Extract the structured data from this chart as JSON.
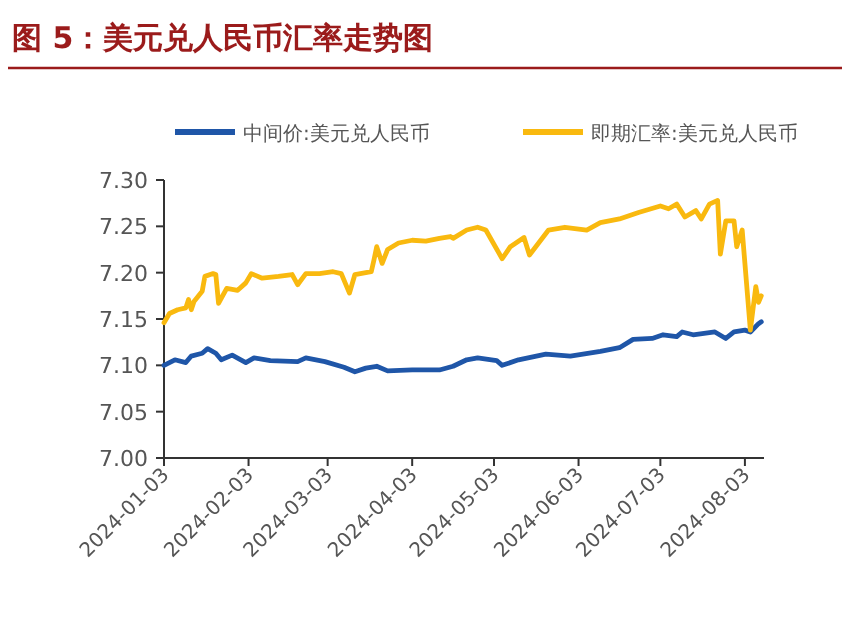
{
  "chart_data": {
    "type": "line",
    "title": "图 5：美元兑人民币汇率走势图",
    "legend": "top",
    "xlim": [
      "2024-01-03",
      "2024-08-10"
    ],
    "ylim": [
      7.0,
      7.3
    ],
    "xticks": [
      "2024-01-03",
      "2024-02-03",
      "2024-03-03",
      "2024-04-03",
      "2024-05-03",
      "2024-06-03",
      "2024-07-03",
      "2024-08-03"
    ],
    "yticks": [
      {
        "value": 7.0,
        "label": "7.00"
      },
      {
        "value": 7.05,
        "label": "7.05"
      },
      {
        "value": 7.1,
        "label": "7.10"
      },
      {
        "value": 7.15,
        "label": "7.15"
      },
      {
        "value": 7.2,
        "label": "7.20"
      },
      {
        "value": 7.25,
        "label": "7.25"
      },
      {
        "value": 7.3,
        "label": "7.30"
      }
    ],
    "series": [
      {
        "name": "中间价:美元兑人民币",
        "color": "#1f56a8",
        "x": [
          "2024-01-03",
          "2024-01-07",
          "2024-01-11",
          "2024-01-13",
          "2024-01-17",
          "2024-01-19",
          "2024-01-22",
          "2024-01-24",
          "2024-01-28",
          "2024-02-02",
          "2024-02-05",
          "2024-02-11",
          "2024-02-21",
          "2024-02-24",
          "2024-03-02",
          "2024-03-09",
          "2024-03-13",
          "2024-03-17",
          "2024-03-21",
          "2024-03-25",
          "2024-04-03",
          "2024-04-13",
          "2024-04-18",
          "2024-04-23",
          "2024-04-27",
          "2024-05-04",
          "2024-05-06",
          "2024-05-12",
          "2024-05-22",
          "2024-05-31",
          "2024-06-11",
          "2024-06-18",
          "2024-06-23",
          "2024-06-30",
          "2024-07-04",
          "2024-07-09",
          "2024-07-11",
          "2024-07-15",
          "2024-07-23",
          "2024-07-27",
          "2024-07-30",
          "2024-08-03",
          "2024-08-05",
          "2024-08-08",
          "2024-08-09"
        ],
        "values": [
          7.1,
          7.106,
          7.103,
          7.11,
          7.113,
          7.118,
          7.113,
          7.106,
          7.111,
          7.103,
          7.108,
          7.105,
          7.104,
          7.108,
          7.104,
          7.098,
          7.093,
          7.097,
          7.099,
          7.094,
          7.095,
          7.095,
          7.099,
          7.106,
          7.108,
          7.105,
          7.1,
          7.106,
          7.112,
          7.11,
          7.115,
          7.119,
          7.128,
          7.129,
          7.133,
          7.131,
          7.136,
          7.133,
          7.136,
          7.129,
          7.136,
          7.138,
          7.136,
          7.145,
          7.147
        ]
      },
      {
        "name": "即期汇率:美元兑人民币",
        "color": "#f9b90f",
        "x": [
          "2024-01-03",
          "2024-01-05",
          "2024-01-08",
          "2024-01-11",
          "2024-01-12",
          "2024-01-13",
          "2024-01-14",
          "2024-01-17",
          "2024-01-18",
          "2024-01-21",
          "2024-01-22",
          "2024-01-23",
          "2024-01-26",
          "2024-01-30",
          "2024-02-02",
          "2024-02-04",
          "2024-02-08",
          "2024-02-14",
          "2024-02-19",
          "2024-02-21",
          "2024-02-24",
          "2024-02-29",
          "2024-03-05",
          "2024-03-08",
          "2024-03-11",
          "2024-03-13",
          "2024-03-19",
          "2024-03-20",
          "2024-03-21",
          "2024-03-23",
          "2024-03-25",
          "2024-03-29",
          "2024-04-03",
          "2024-04-08",
          "2024-04-13",
          "2024-04-17",
          "2024-04-18",
          "2024-04-23",
          "2024-04-27",
          "2024-04-30",
          "2024-05-06",
          "2024-05-09",
          "2024-05-14",
          "2024-05-16",
          "2024-05-23",
          "2024-05-29",
          "2024-06-06",
          "2024-06-11",
          "2024-06-18",
          "2024-06-25",
          "2024-07-03",
          "2024-07-06",
          "2024-07-09",
          "2024-07-12",
          "2024-07-16",
          "2024-07-18",
          "2024-07-21",
          "2024-07-24",
          "2024-07-25",
          "2024-07-27",
          "2024-07-30",
          "2024-07-31",
          "2024-08-02",
          "2024-08-05",
          "2024-08-07",
          "2024-08-08",
          "2024-08-09"
        ],
        "values": [
          7.146,
          7.156,
          7.16,
          7.162,
          7.171,
          7.16,
          7.169,
          7.18,
          7.196,
          7.199,
          7.198,
          7.167,
          7.183,
          7.181,
          7.189,
          7.199,
          7.194,
          7.196,
          7.198,
          7.187,
          7.199,
          7.199,
          7.201,
          7.199,
          7.178,
          7.198,
          7.201,
          7.214,
          7.228,
          7.21,
          7.225,
          7.232,
          7.235,
          7.234,
          7.237,
          7.239,
          7.237,
          7.246,
          7.249,
          7.246,
          7.215,
          7.228,
          7.238,
          7.219,
          7.246,
          7.249,
          7.246,
          7.254,
          7.258,
          7.265,
          7.272,
          7.269,
          7.274,
          7.26,
          7.267,
          7.258,
          7.274,
          7.278,
          7.22,
          7.256,
          7.256,
          7.228,
          7.246,
          7.138,
          7.185,
          7.168,
          7.175
        ]
      }
    ]
  }
}
